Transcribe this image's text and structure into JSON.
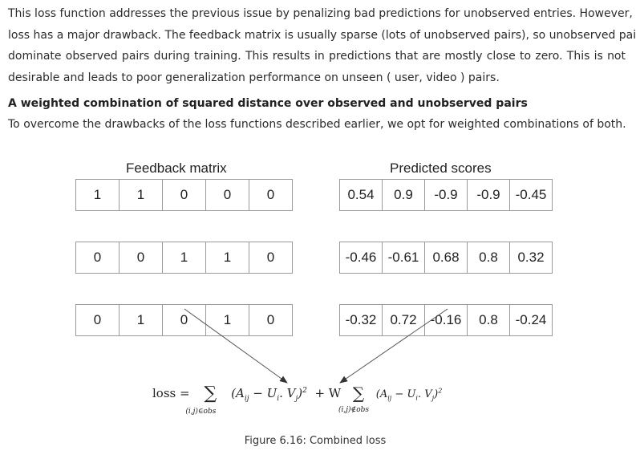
{
  "paragraph1": {
    "lines": [
      "This loss function addresses the previous issue by penalizing bad predictions for unobserved entries. However, this",
      "loss has a major drawback. The feedback matrix is usually sparse (lots of unobserved pairs), so unobserved pairs",
      "dominate observed pairs during training. This results in predictions that are mostly close to zero. This is not",
      "desirable and leads to poor generalization performance on unseen ( user, video ) pairs."
    ]
  },
  "heading": "A weighted combination of squared distance over observed and unobserved pairs",
  "paragraph2": "To overcome the drawbacks of the loss functions described earlier, we opt for weighted combinations of both.",
  "figure": {
    "feedback_title": "Feedback matrix",
    "predicted_title": "Predicted scores",
    "feedback_matrix": [
      [
        "1",
        "1",
        "0",
        "0",
        "0"
      ],
      [
        "0",
        "0",
        "1",
        "1",
        "0"
      ],
      [
        "0",
        "1",
        "0",
        "1",
        "0"
      ]
    ],
    "predicted_scores": [
      [
        "0.54",
        "0.9",
        "-0.9",
        "-0.9",
        "-0.45"
      ],
      [
        "-0.46",
        "-0.61",
        "0.68",
        "0.8",
        "0.32"
      ],
      [
        "-0.32",
        "0.72",
        "-0.16",
        "0.8",
        "-0.24"
      ]
    ],
    "formula": {
      "loss_label": "loss =",
      "term1": "(A",
      "sub_ij": "ij",
      "minus": " − U",
      "sub_i": "i",
      "dot": ". V",
      "sub_j": "j",
      "close": ")",
      "sup": "2",
      "plus_w": "+  W",
      "sum1_under": "(i,j)∈obs",
      "sum2_under": "(i,j)∉obs",
      "sigma": "∑"
    },
    "caption": "Figure 6.16: Combined loss"
  }
}
